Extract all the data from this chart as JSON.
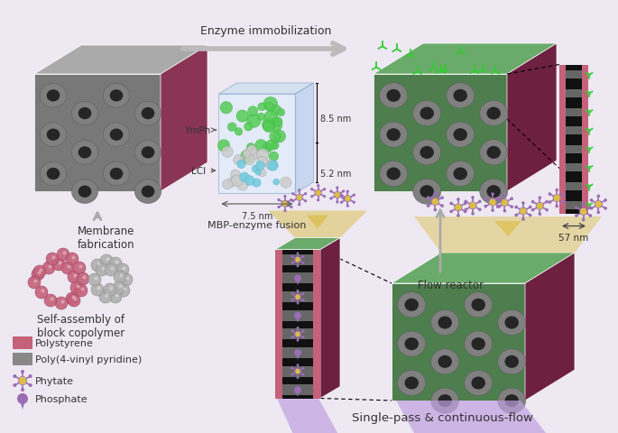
{
  "bg_color": "#ede8f2",
  "polystyrene_color": "#c4627a",
  "p4vp_color": "#808080",
  "green_color": "#4e7e4e",
  "green_top_color": "#6aaa6a",
  "dark_red_color": "#6e2040",
  "side_dark_color": "#8b3555",
  "pore_gray": "#707070",
  "pore_inner": "#252525",
  "text_color": "#333333",
  "arrow_gray": "#aaaaaa",
  "yellow_fill": "#dbbe45",
  "yellow_light": "#e8d070",
  "purple_fill": "#9b6db5",
  "purple_light": "#c8a8e0",
  "protein_green": "#44bb44",
  "protein_gray": "#cccccc",
  "protein_cyan": "#66ccdd",
  "box_front": "#ddeeff",
  "box_edge": "#88aacc",
  "membrane_fabrication_text": "Membrane\nfabrication",
  "enzyme_immobilization_text": "Enzyme immobilization",
  "flow_reactor_text": "Flow reactor",
  "selfassembly_text": "Self-assembly of\nblock copolymer",
  "polystyrene_label": "Polystyrene",
  "p4vp_label": "Poly(4-vinyl pyridine)",
  "phytate_label": "Phytate",
  "phosphate_label": "Phosphate",
  "mbp_enzyme_text": "MBP-enzyme fusion",
  "ymph_text": "YmPh",
  "lci_text": "LCl",
  "size_85": "8.5 nm",
  "size_52": "5.2 nm",
  "size_75": "7.5 nm",
  "size_57": "57 nm",
  "singlepass_text": "Single-pass & continuous-flow"
}
